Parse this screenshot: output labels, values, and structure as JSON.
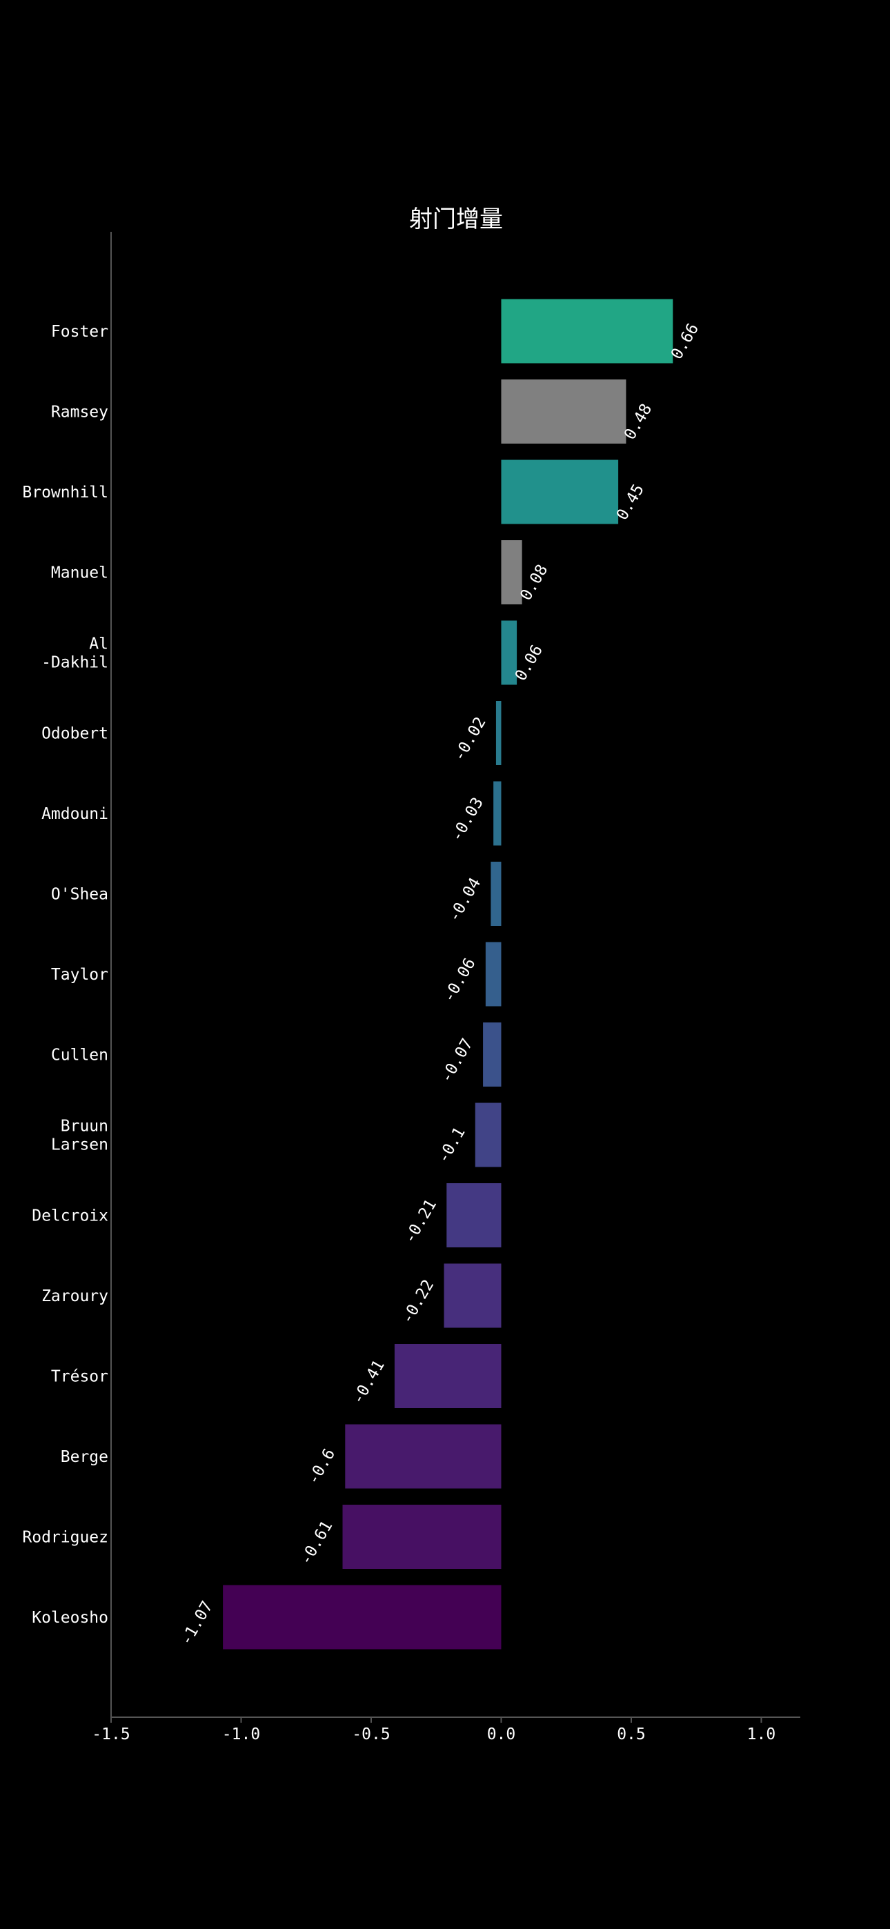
{
  "chart_data": {
    "type": "bar",
    "orientation": "horizontal",
    "title": "射门增量",
    "xlabel": "",
    "ylabel": "",
    "xlim": [
      -1.5,
      1.15
    ],
    "x_ticks": [
      -1.5,
      -1.0,
      -0.5,
      0.0,
      0.5,
      1.0
    ],
    "x_tick_labels": [
      "-1.5",
      "-1.0",
      "-0.5",
      "0.0",
      "0.5",
      "1.0"
    ],
    "grid": false,
    "legend": "none",
    "categories": [
      [
        "Foster"
      ],
      [
        "Ramsey"
      ],
      [
        "Brownhill"
      ],
      [
        "Manuel"
      ],
      [
        "Al",
        "-Dakhil"
      ],
      [
        "Odobert"
      ],
      [
        "Amdouni"
      ],
      [
        "O'Shea"
      ],
      [
        "Taylor"
      ],
      [
        "Cullen"
      ],
      [
        "Bruun",
        "Larsen"
      ],
      [
        "Delcroix"
      ],
      [
        "Zaroury"
      ],
      [
        "Trésor"
      ],
      [
        "Berge"
      ],
      [
        "Rodriguez"
      ],
      [
        "Koleosho"
      ]
    ],
    "values": [
      0.66,
      0.48,
      0.45,
      0.08,
      0.06,
      -0.02,
      -0.03,
      -0.04,
      -0.06,
      -0.07,
      -0.1,
      -0.21,
      -0.22,
      -0.41,
      -0.6,
      -0.61,
      -1.07
    ],
    "value_labels": [
      "0.66",
      "0.48",
      "0.45",
      "0.08",
      "0.06",
      "-0.02",
      "-0.03",
      "-0.04",
      "-0.06",
      "-0.07",
      "-0.1",
      "-0.21",
      "-0.22",
      "-0.41",
      "-0.6",
      "-0.61",
      "-1.07"
    ],
    "colors": [
      "#21a685",
      "#808080",
      "#21918c",
      "#808080",
      "#24878e",
      "#297b8e",
      "#2c718e",
      "#31668e",
      "#355f8d",
      "#3b528b",
      "#414487",
      "#443983",
      "#472f7d",
      "#482576",
      "#481a6c",
      "#471063",
      "#440154"
    ]
  },
  "colors": {
    "background": "#000000",
    "text": "#ffffff",
    "axis": "#555555"
  }
}
